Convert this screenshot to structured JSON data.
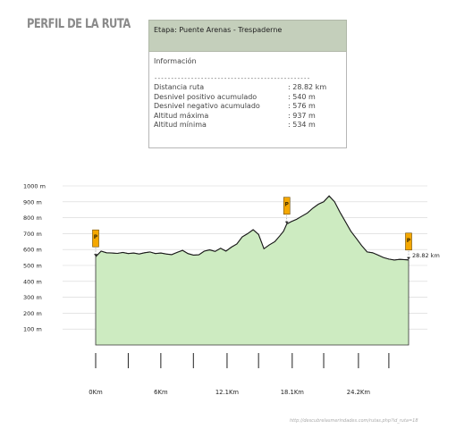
{
  "header": {
    "title": "PERFIL DE LA RUTA"
  },
  "panel": {
    "stage": "Etapa: Puente Arenas - Trespaderne",
    "info_title": "Información",
    "separator": "-----------------------------------------------",
    "rows": [
      {
        "label": "Distancia ruta",
        "value": ": 28.82 km"
      },
      {
        "label": "Desnivel positivo acumulado",
        "value": ": 540 m"
      },
      {
        "label": "Desnivel negativo acumulado",
        "value": ": 576 m"
      },
      {
        "label": "Altitud máxima",
        "value": ": 937 m"
      },
      {
        "label": "Altitud mínima",
        "value": ": 534 m"
      }
    ]
  },
  "chart_data": {
    "type": "area",
    "xlabel": "",
    "ylabel": "",
    "xlim": [
      0,
      28.82
    ],
    "ylim": [
      0,
      1000
    ],
    "y_ticks": [
      {
        "value": 1000,
        "label": "1000 m"
      },
      {
        "value": 900,
        "label": "900 m"
      },
      {
        "value": 800,
        "label": "800 m"
      },
      {
        "value": 700,
        "label": "700 m"
      },
      {
        "value": 600,
        "label": "600 m"
      },
      {
        "value": 500,
        "label": "500 m"
      },
      {
        "value": 400,
        "label": "400 m"
      },
      {
        "value": 300,
        "label": "300 m"
      },
      {
        "value": 200,
        "label": "200 m"
      },
      {
        "value": 100,
        "label": "100 m"
      }
    ],
    "x_tick_labels": [
      {
        "value": 0,
        "label": "0Km"
      },
      {
        "value": 6,
        "label": "6Km"
      },
      {
        "value": 12.1,
        "label": "12.1Km"
      },
      {
        "value": 18.1,
        "label": "18.1Km"
      },
      {
        "value": 24.2,
        "label": "24.2Km"
      }
    ],
    "x_minor_ticks": [
      3,
      9,
      15,
      21,
      27
    ],
    "end_label": "28.82 km",
    "x": [
      0,
      0.5,
      1.0,
      1.5,
      2.0,
      2.5,
      3.0,
      3.5,
      4.0,
      4.5,
      5.0,
      5.5,
      6.0,
      6.5,
      7.0,
      7.5,
      8.0,
      8.5,
      9.0,
      9.5,
      10.0,
      10.5,
      11.0,
      11.5,
      12.0,
      12.5,
      13.0,
      13.5,
      14.0,
      14.5,
      15.0,
      15.5,
      16.0,
      16.5,
      17.0,
      17.3,
      17.6,
      18.0,
      18.5,
      19.0,
      19.5,
      20.0,
      20.5,
      21.0,
      21.5,
      22.0,
      22.5,
      23.0,
      23.5,
      24.0,
      24.5,
      25.0,
      25.5,
      26.0,
      26.5,
      27.0,
      27.5,
      28.0,
      28.82
    ],
    "values": [
      555,
      590,
      580,
      578,
      576,
      582,
      575,
      578,
      572,
      580,
      585,
      575,
      578,
      572,
      568,
      582,
      595,
      575,
      565,
      567,
      590,
      598,
      588,
      608,
      590,
      615,
      635,
      680,
      700,
      725,
      695,
      605,
      630,
      650,
      690,
      715,
      760,
      775,
      790,
      810,
      830,
      860,
      885,
      900,
      937,
      900,
      835,
      775,
      715,
      670,
      625,
      585,
      580,
      565,
      550,
      540,
      534,
      538,
      535
    ],
    "markers": [
      {
        "x": 0,
        "label": "P"
      },
      {
        "x": 17.6,
        "label": "P"
      },
      {
        "x": 28.82,
        "label": "P"
      }
    ],
    "colors": {
      "fill": "#cdebc1",
      "line": "#1a1a1a",
      "marker": "#f5a800",
      "grid": "#d5d5d5"
    },
    "grid": true
  },
  "footer": {
    "url": "http://descubrelasmerindades.com/rutas.php?id_ruta=18"
  }
}
